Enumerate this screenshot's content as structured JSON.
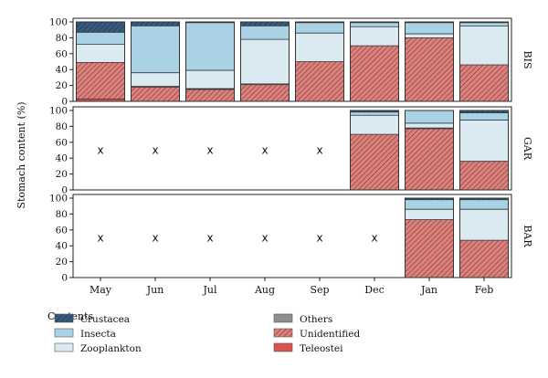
{
  "chart_data": {
    "type": "bar",
    "stacked": true,
    "ylabel": "Stomach content (%)",
    "ylim": [
      0,
      100
    ],
    "yticks": [
      "0",
      "20",
      "40",
      "60",
      "80",
      "100"
    ],
    "categories": [
      "May",
      "Jun",
      "Jul",
      "Aug",
      "Sep",
      "Dec",
      "Jan",
      "Feb"
    ],
    "missing_marker": "x",
    "legend": {
      "title": "Contents",
      "placement": "bottom",
      "items": [
        {
          "key": "Crustacea",
          "label": "Crustacea",
          "color": "#3a5b80",
          "hatch": "diagonal"
        },
        {
          "key": "Insecta",
          "label": "Insecta",
          "color": "#a9d3e4",
          "hatch": "none"
        },
        {
          "key": "Zooplankton",
          "label": "Zooplankton",
          "color": "#dbe9f0",
          "hatch": "none"
        },
        {
          "key": "Others",
          "label": "Others",
          "color": "#8e8e8e",
          "hatch": "none"
        },
        {
          "key": "Unidentified",
          "label": "Unidentified",
          "color": "#d9837f",
          "hatch": "diagonal"
        },
        {
          "key": "Teleostei",
          "label": "Teleostei",
          "color": "#d9534f",
          "hatch": "none"
        }
      ]
    },
    "stack_order": [
      "Teleostei",
      "Unidentified",
      "Others",
      "Zooplankton",
      "Insecta",
      "Crustacea"
    ],
    "panels": [
      {
        "label": "BIS",
        "bars": [
          {
            "Teleostei": 3,
            "Unidentified": 46,
            "Others": 0,
            "Zooplankton": 23,
            "Insecta": 15,
            "Crustacea": 13
          },
          {
            "Teleostei": 0,
            "Unidentified": 18,
            "Others": 1,
            "Zooplankton": 17,
            "Insecta": 59,
            "Crustacea": 5
          },
          {
            "Teleostei": 0,
            "Unidentified": 15,
            "Others": 1,
            "Zooplankton": 23,
            "Insecta": 60,
            "Crustacea": 1
          },
          {
            "Teleostei": 0,
            "Unidentified": 21,
            "Others": 1,
            "Zooplankton": 56,
            "Insecta": 17,
            "Crustacea": 5
          },
          {
            "Teleostei": 0,
            "Unidentified": 50,
            "Others": 0,
            "Zooplankton": 36,
            "Insecta": 13,
            "Crustacea": 1
          },
          {
            "Teleostei": 0,
            "Unidentified": 70,
            "Others": 0,
            "Zooplankton": 24,
            "Insecta": 5,
            "Crustacea": 1
          },
          {
            "Teleostei": 0,
            "Unidentified": 80,
            "Others": 0,
            "Zooplankton": 5,
            "Insecta": 14,
            "Crustacea": 1
          },
          {
            "Teleostei": 0,
            "Unidentified": 46,
            "Others": 0,
            "Zooplankton": 49,
            "Insecta": 4,
            "Crustacea": 1
          }
        ]
      },
      {
        "label": "GAR",
        "bars": [
          null,
          null,
          null,
          null,
          null,
          {
            "Teleostei": 0,
            "Unidentified": 70,
            "Others": 0,
            "Zooplankton": 24,
            "Insecta": 4,
            "Crustacea": 2
          },
          {
            "Teleostei": 0,
            "Unidentified": 77,
            "Others": 1,
            "Zooplankton": 6,
            "Insecta": 16,
            "Crustacea": 0
          },
          {
            "Teleostei": 0,
            "Unidentified": 36,
            "Others": 0,
            "Zooplankton": 52,
            "Insecta": 9,
            "Crustacea": 3
          }
        ]
      },
      {
        "label": "BAR",
        "bars": [
          null,
          null,
          null,
          null,
          null,
          null,
          {
            "Teleostei": 0,
            "Unidentified": 73,
            "Others": 0,
            "Zooplankton": 13,
            "Insecta": 12,
            "Crustacea": 2
          },
          {
            "Teleostei": 0,
            "Unidentified": 47,
            "Others": 0,
            "Zooplankton": 39,
            "Insecta": 12,
            "Crustacea": 2
          }
        ]
      }
    ]
  }
}
